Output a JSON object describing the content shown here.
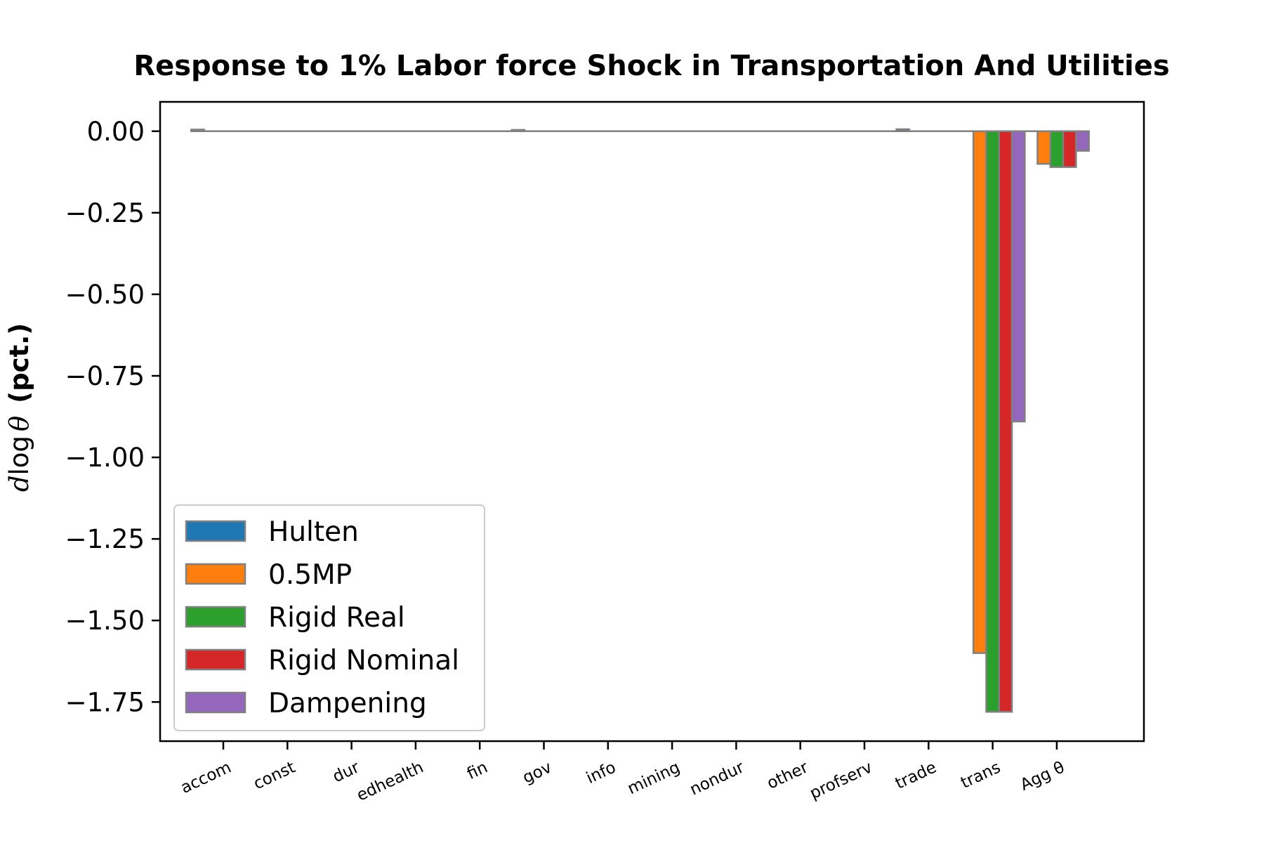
{
  "chart_data": {
    "type": "bar",
    "title": "Response to 1% Labor force Shock in Transportation And Utilities",
    "ylabel": {
      "math_d": "d",
      "math_log": "log",
      "math_theta": "θ",
      "unit": "(pct.)"
    },
    "xlabel": "",
    "categories": [
      "accom",
      "const",
      "dur",
      "edhealth",
      "fin",
      "gov",
      "info",
      "mining",
      "nondur",
      "other",
      "profserv",
      "trade",
      "trans",
      "Agg θ"
    ],
    "ylim": [
      -1.87,
      0.09
    ],
    "yticks": [
      0.0,
      -0.25,
      -0.5,
      -0.75,
      -1.0,
      -1.25,
      -1.5,
      -1.75
    ],
    "ytick_labels": [
      "0.00",
      "−0.25",
      "−0.50",
      "−0.75",
      "−1.00",
      "−1.25",
      "−1.50",
      "−1.75"
    ],
    "grid": false,
    "legend_position": "lower-left",
    "bar_edge_color": "#808080",
    "series": [
      {
        "name": "Hulten",
        "color": "#1f77b4",
        "values": [
          0.005,
          0,
          0,
          0,
          0,
          0.004,
          0,
          0,
          0,
          0,
          0,
          0.006,
          0,
          0
        ]
      },
      {
        "name": "0.5MP",
        "color": "#ff7f0e",
        "values": [
          0,
          0,
          0,
          0,
          0,
          0,
          0,
          0,
          0,
          0,
          0,
          0,
          -1.6,
          -0.1
        ]
      },
      {
        "name": "Rigid Real",
        "color": "#2ca02c",
        "values": [
          0,
          0,
          0,
          0,
          0,
          0,
          0,
          0,
          0,
          0,
          0,
          0,
          -1.78,
          -0.11
        ]
      },
      {
        "name": "Rigid Nominal",
        "color": "#d62728",
        "values": [
          0,
          0,
          0,
          0,
          0,
          0,
          0,
          0,
          0,
          0,
          0,
          0,
          -1.78,
          -0.11
        ]
      },
      {
        "name": "Dampening",
        "color": "#9467bd",
        "values": [
          0,
          0,
          0,
          0,
          0,
          0,
          0,
          0,
          0,
          0,
          0,
          0,
          -0.89,
          -0.06
        ]
      }
    ]
  }
}
